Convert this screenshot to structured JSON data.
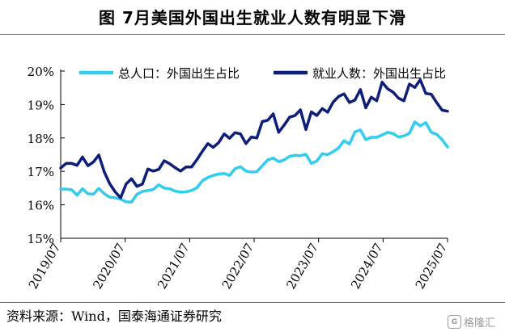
{
  "figure": {
    "title": "图 7月美国外国出生就业人数有明显下滑",
    "source": "资料来源：Wind，国泰海通证券研究",
    "watermark_text": "格隆汇",
    "watermark_icon": "g-logo-icon"
  },
  "chart_data": {
    "type": "line",
    "ylim": [
      15,
      20
    ],
    "yticks": [
      "15%",
      "16%",
      "17%",
      "18%",
      "19%",
      "20%"
    ],
    "yunit": "%",
    "xlabels": [
      "2019/07",
      "2020/07",
      "2021/07",
      "2022/07",
      "2023/07",
      "2024/07",
      "2025/07"
    ],
    "x_start": "2019/07",
    "x_end": "2025/07",
    "grid": false,
    "legend_position": "top",
    "series": [
      {
        "name": "总人口：外国出生占比",
        "color": "#33CCEE",
        "values": [
          16.47,
          16.47,
          16.45,
          16.29,
          16.48,
          16.33,
          16.32,
          16.49,
          16.33,
          16.23,
          16.21,
          16.17,
          16.09,
          16.08,
          16.32,
          16.4,
          16.43,
          16.46,
          16.6,
          16.5,
          16.48,
          16.41,
          16.38,
          16.39,
          16.43,
          16.51,
          16.72,
          16.82,
          16.88,
          16.92,
          16.94,
          16.88,
          17.08,
          17.14,
          17.01,
          16.98,
          16.99,
          17.17,
          17.34,
          17.4,
          17.29,
          17.34,
          17.45,
          17.48,
          17.47,
          17.51,
          17.24,
          17.31,
          17.53,
          17.5,
          17.59,
          17.7,
          17.92,
          17.82,
          18.18,
          18.24,
          17.95,
          18.02,
          18.02,
          18.09,
          18.17,
          18.13,
          18.03,
          18.06,
          18.14,
          18.48,
          18.36,
          18.46,
          18.17,
          18.11,
          17.95,
          17.73
        ]
      },
      {
        "name": "就业人数：外国出生占比",
        "color": "#0D1F7A",
        "values": [
          17.1,
          17.24,
          17.24,
          17.18,
          17.43,
          17.17,
          17.28,
          17.49,
          16.98,
          16.63,
          16.39,
          16.21,
          16.62,
          16.78,
          16.55,
          16.62,
          17.07,
          17.01,
          17.06,
          17.32,
          17.23,
          17.11,
          17.01,
          17.13,
          17.13,
          17.35,
          17.6,
          17.83,
          17.72,
          17.86,
          18.12,
          17.99,
          18.16,
          18.12,
          17.83,
          18.03,
          18.0,
          18.49,
          18.53,
          18.72,
          18.17,
          18.38,
          18.62,
          18.67,
          18.84,
          18.25,
          18.78,
          18.67,
          18.88,
          18.77,
          19.07,
          19.24,
          19.32,
          19.06,
          19.13,
          19.45,
          18.9,
          19.22,
          19.11,
          19.67,
          19.47,
          19.37,
          19.19,
          19.11,
          19.61,
          19.51,
          19.74,
          19.33,
          19.31,
          19.06,
          18.83,
          18.8
        ]
      }
    ]
  }
}
